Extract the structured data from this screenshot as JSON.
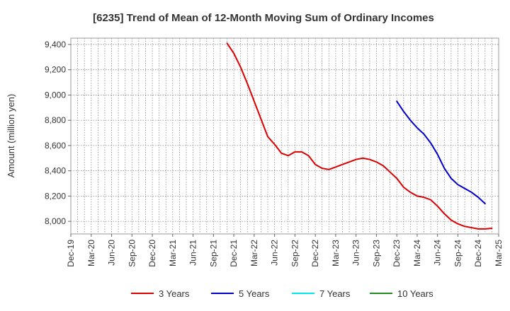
{
  "chart_data": {
    "type": "line",
    "title": "[6235]  Trend of Mean of 12-Month Moving Sum of Ordinary Incomes",
    "xlabel": "",
    "ylabel": "Amount (million yen)",
    "ylim": [
      7900,
      9450
    ],
    "yticks": [
      8000,
      8200,
      8400,
      8600,
      8800,
      9000,
      9200,
      9400
    ],
    "ytick_labels": [
      "8,000",
      "8,200",
      "8,400",
      "8,600",
      "8,800",
      "9,000",
      "9,200",
      "9,400"
    ],
    "x_start": "Dec-19",
    "x_months_total": 63,
    "xtick_labels": [
      "Dec-19",
      "Mar-20",
      "Jun-20",
      "Sep-20",
      "Dec-20",
      "Mar-21",
      "Jun-21",
      "Sep-21",
      "Dec-21",
      "Mar-22",
      "Jun-22",
      "Sep-22",
      "Dec-22",
      "Mar-23",
      "Jun-23",
      "Sep-23",
      "Dec-23",
      "Mar-24",
      "Jun-24",
      "Sep-24",
      "Dec-24",
      "Mar-25"
    ],
    "grid": true,
    "legend_position": "bottom",
    "series": [
      {
        "name": "3 Years",
        "color": "#dd0000",
        "start_month_index": 23,
        "values": [
          9410,
          9330,
          9220,
          9090,
          8950,
          8810,
          8670,
          8610,
          8540,
          8520,
          8550,
          8550,
          8520,
          8450,
          8420,
          8410,
          8430,
          8450,
          8470,
          8490,
          8500,
          8490,
          8470,
          8440,
          8390,
          8340,
          8270,
          8230,
          8200,
          8190,
          8170,
          8120,
          8060,
          8010,
          7980,
          7960,
          7950,
          7940,
          7940,
          7945
        ]
      },
      {
        "name": "5 Years",
        "color": "#0000cc",
        "start_month_index": 48,
        "values": [
          8950,
          8870,
          8800,
          8740,
          8690,
          8620,
          8530,
          8420,
          8340,
          8290,
          8260,
          8230,
          8190,
          8140
        ]
      },
      {
        "name": "7 Years",
        "color": "#00e5ee",
        "start_month_index": null,
        "values": []
      },
      {
        "name": "10 Years",
        "color": "#228b22",
        "start_month_index": null,
        "values": []
      }
    ]
  }
}
